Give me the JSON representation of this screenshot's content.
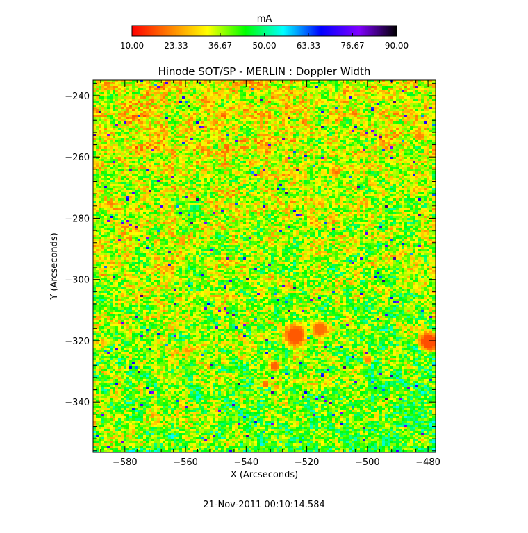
{
  "chart_data": {
    "type": "heatmap",
    "title": "Hinode SOT/SP - MERLIN : Doppler Width",
    "xlabel": "X (Arcseconds)",
    "ylabel": "Y (Arcseconds)",
    "x_ticks": [
      -580,
      -560,
      -540,
      -520,
      -500,
      -480
    ],
    "x_tick_labels": [
      "−580",
      "−560",
      "−540",
      "−520",
      "−500",
      "−480"
    ],
    "y_ticks": [
      -240,
      -260,
      -280,
      -300,
      -320,
      -340
    ],
    "y_tick_labels": [
      "−240",
      "−260",
      "−280",
      "−300",
      "−320",
      "−340"
    ],
    "xlim": [
      -590.5,
      -477.5
    ],
    "ylim": [
      -356.5,
      -234.8
    ],
    "colorbar": {
      "label": "mA",
      "range": [
        10.0,
        90.0
      ],
      "tick_values": [
        10.0,
        23.33,
        36.67,
        50.0,
        63.33,
        76.67,
        90.0
      ],
      "tick_labels": [
        "10.00",
        "23.33",
        "36.67",
        "50.00",
        "63.33",
        "76.67",
        "90.00"
      ],
      "colormap_stops": [
        "#ff0000",
        "#ff8000",
        "#ffff00",
        "#00ff00",
        "#00ffff",
        "#0000ff",
        "#8000ff",
        "#000000"
      ]
    },
    "features": [
      {
        "x": -524,
        "y": -318,
        "value": 18
      },
      {
        "x": -516,
        "y": -316,
        "value": 20
      },
      {
        "x": -531,
        "y": -328,
        "value": 19
      },
      {
        "x": -534,
        "y": -334,
        "value": 20
      },
      {
        "x": -480,
        "y": -320,
        "value": 17
      },
      {
        "x": -483,
        "y": -253,
        "value": 22
      },
      {
        "x": -500,
        "y": -326,
        "value": 22
      }
    ]
  },
  "timestamp": "21-Nov-2011 00:10:14.584"
}
